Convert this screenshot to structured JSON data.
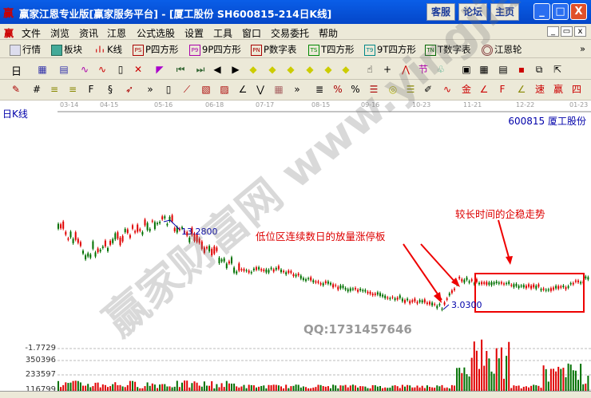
{
  "window": {
    "logo": "赢",
    "title": "赢家江恩专业版[赢家服务平台] - [厦工股份   SH600815-214日K线]",
    "buttons": [
      "客服",
      "论坛",
      "主页"
    ],
    "controls": [
      "_",
      "□",
      "X"
    ]
  },
  "menu": {
    "items": [
      "文件",
      "浏览",
      "资讯",
      "江恩",
      "公式选股",
      "设置",
      "工具",
      "窗口",
      "交易委托",
      "帮助"
    ],
    "controls": [
      "_",
      "▭",
      "x"
    ]
  },
  "toolbar1": {
    "items": [
      {
        "icon": "table-icon",
        "label": "行情"
      },
      {
        "icon": "blocks-icon",
        "label": "板块"
      },
      {
        "icon": "kline-icon",
        "label": "K线"
      },
      {
        "icon": "PS",
        "label": "P四方形"
      },
      {
        "icon": "P9",
        "label": "9P四方形"
      },
      {
        "icon": "PN",
        "label": "P数字表"
      },
      {
        "icon": "TS",
        "label": "T四方形"
      },
      {
        "icon": "T9",
        "label": "9T四方形"
      },
      {
        "icon": "TN",
        "label": "T数字表"
      },
      {
        "icon": "wheel-icon",
        "label": "江恩轮"
      }
    ],
    "more": "»"
  },
  "toolbar2": {
    "period": "日"
  },
  "chart": {
    "period_label": "日K线",
    "stock": "600815 厦工股份",
    "dates": [
      "03-14",
      "04-15",
      "05-16",
      "06-18",
      "07-17",
      "08-15",
      "09-16",
      "10-23",
      "11-21",
      "12-22",
      "01-23"
    ],
    "high_label": "13.2800",
    "low_label": "3.0300",
    "annotation_1": "低位区连续数日的放量涨停板",
    "annotation_2": "较长时间的企稳走势",
    "watermark": "QQ:1731457646",
    "watermark_logo": "赢家财富网 www.yingjia360.com",
    "up_color": "#e00000",
    "down_color": "#007000"
  },
  "volume": {
    "labels": [
      "-1.7729",
      "350396",
      "233597",
      "116799"
    ]
  }
}
